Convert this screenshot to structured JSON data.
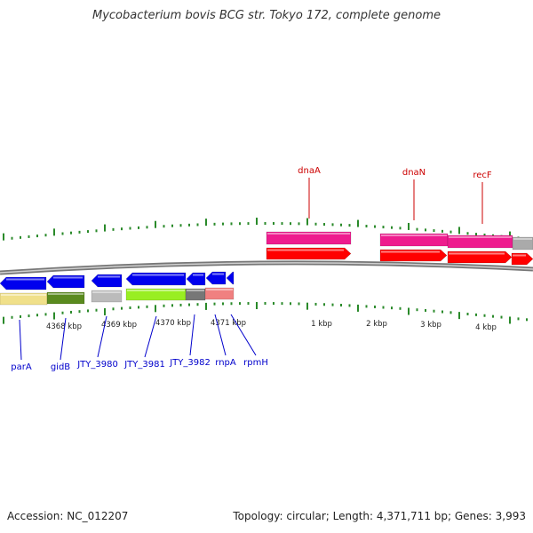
{
  "title": "Mycobacterium bovis BCG str. Tokyo 172, complete genome",
  "footer": {
    "accession": "Accession: NC_012207",
    "topology": "Topology: circular; Length: 4,371,711 bp; Genes: 3,993"
  },
  "colors": {
    "backbone": "#888888",
    "tick": "#2a8a2a",
    "cds_forward": "#ff0000",
    "cds_reverse": "#0000ee",
    "label_top": "#cc0000",
    "label_bottom": "#0000cc",
    "gene_pink": "#ee1c8e",
    "gene_yellow": "#f0e08a",
    "gene_olive": "#5a8a1e",
    "gene_gray": "#aaaaaa",
    "gene_lime": "#99ee22",
    "gene_darkgray": "#777777",
    "gene_salmon": "#f08080"
  },
  "scale_labels": [
    "4368 kbp",
    "4369 kbp",
    "4370 kbp",
    "4371 kbp",
    "1 kbp",
    "2 kbp",
    "3 kbp",
    "4 kbp"
  ],
  "top_genes": [
    "dnaA",
    "dnaN",
    "recF"
  ],
  "bottom_genes": [
    "parA",
    "gidB",
    "JTY_3980",
    "JTY_3981",
    "JTY_3982",
    "rnpA",
    "rpmH"
  ]
}
